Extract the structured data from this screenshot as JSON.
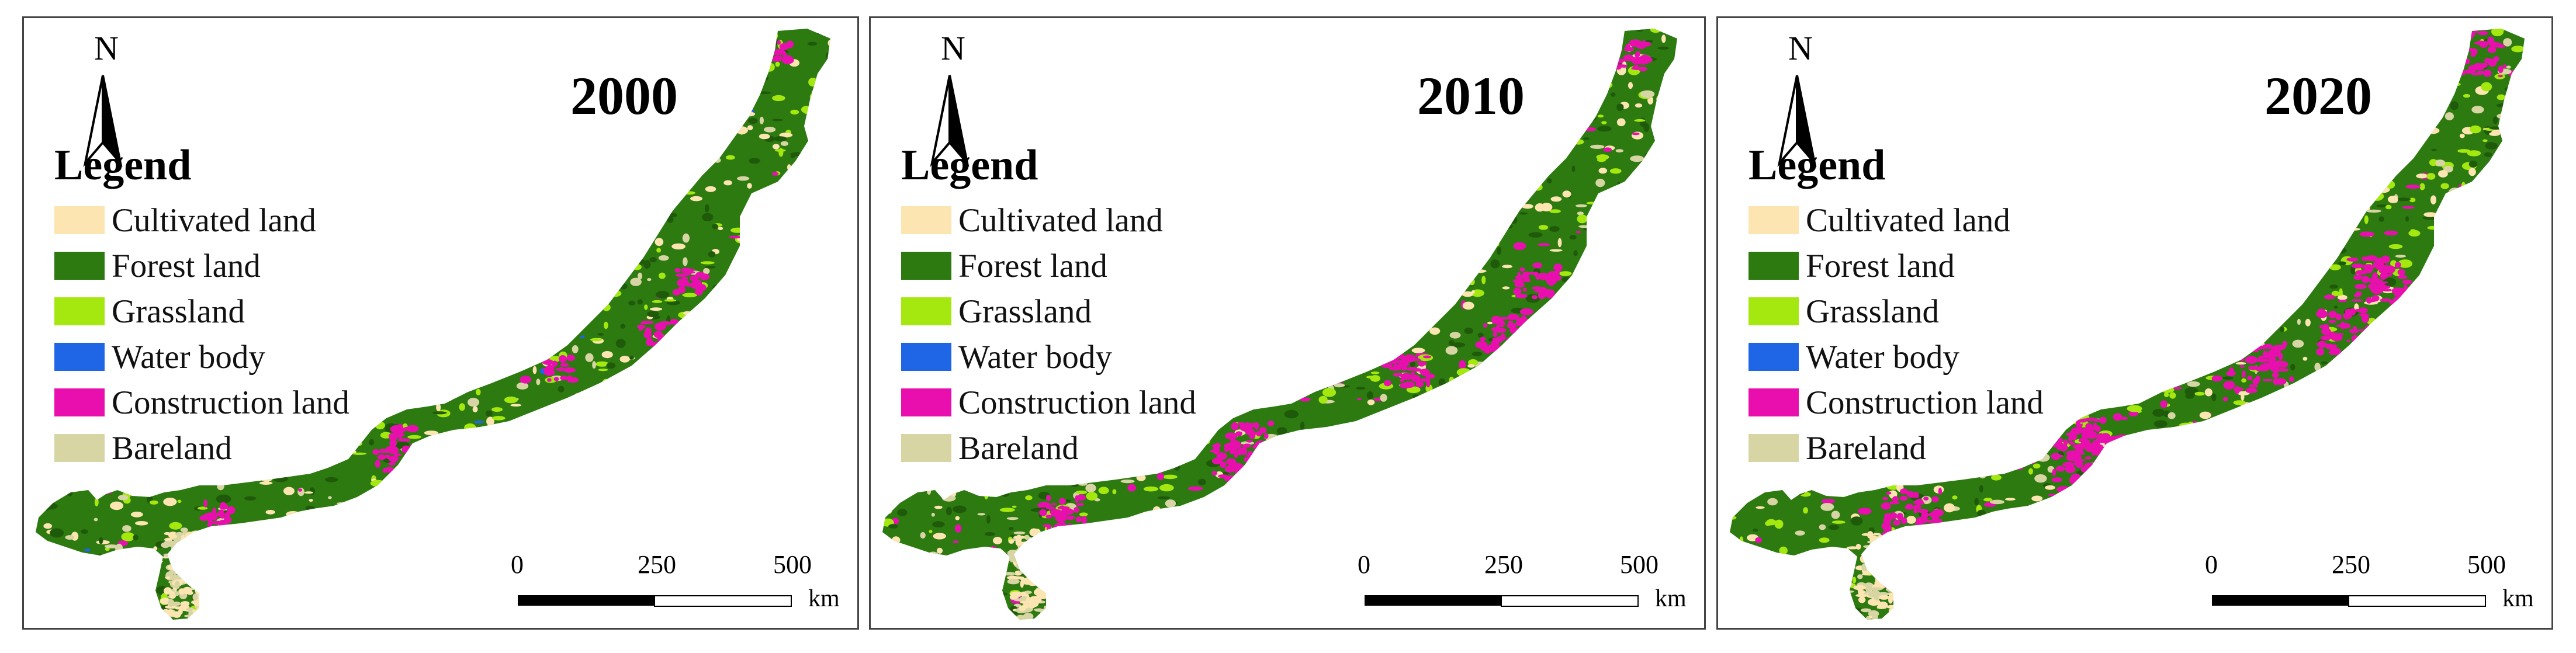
{
  "colors": {
    "cultivated": "#FCE5B1",
    "forest": "#2C7A10",
    "grassland": "#A4E810",
    "water": "#1F66E6",
    "construction": "#E80FAE",
    "bareland": "#D8D5A4"
  },
  "panels": [
    {
      "year": "2000"
    },
    {
      "year": "2010"
    },
    {
      "year": "2020"
    }
  ],
  "north_arrow": {
    "label": "N"
  },
  "legend": {
    "title": "Legend",
    "items": [
      {
        "label": "Cultivated land",
        "color": "#FCE5B1"
      },
      {
        "label": "Forest land",
        "color": "#2C7A10"
      },
      {
        "label": "Grassland",
        "color": "#A4E810"
      },
      {
        "label": "Water body",
        "color": "#1F66E6"
      },
      {
        "label": "Construction land",
        "color": "#E80FAE"
      },
      {
        "label": "Bareland",
        "color": "#D8D5A4"
      }
    ]
  },
  "scale_bar": {
    "ticks": [
      "0",
      "250",
      "500"
    ],
    "unit": "km"
  }
}
